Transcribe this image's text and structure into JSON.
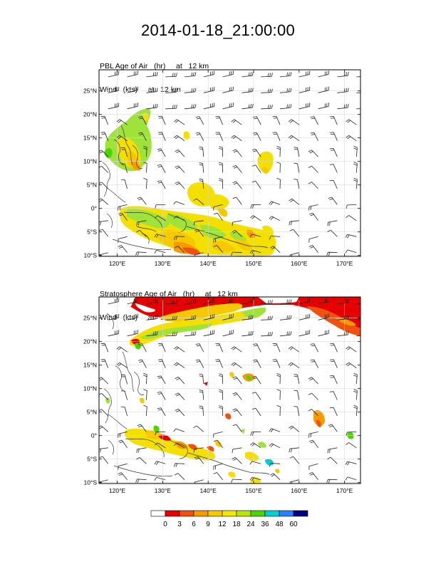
{
  "title": "2014-01-18_21:00:00",
  "panels": [
    {
      "title_line1": "PBL Age of Air   (hr)     at   12 km",
      "title_line2": "Wind   (kts)     at   12 km",
      "lon_ticks": [
        "120°E",
        "130°E",
        "140°E",
        "150°E",
        "160°E",
        "170°E"
      ],
      "lat_ticks": [
        "25°N",
        "20°N",
        "15°N",
        "10°N",
        "5°N",
        "0°",
        "5°S",
        "10°S"
      ]
    },
    {
      "title_line1": "Stratosphere Age of Air   (hr)     at   12 km",
      "title_line2": "Wind   (kts)     at   12 km",
      "lon_ticks": [
        "120°E",
        "130°E",
        "140°E",
        "150°E",
        "160°E",
        "170°E"
      ],
      "lat_ticks": [
        "25°N",
        "20°N",
        "15°N",
        "10°N",
        "5°N",
        "0°",
        "5°S",
        "10°S"
      ]
    }
  ],
  "colorbar": {
    "labels": [
      "0",
      "3",
      "6",
      "9",
      "12",
      "18",
      "24",
      "36",
      "48",
      "60"
    ],
    "colors": [
      "#ffffff",
      "#e60000",
      "#f05010",
      "#f59a00",
      "#f5c800",
      "#f5e600",
      "#b8e600",
      "#4cd400",
      "#00cfcf",
      "#2a7fff",
      "#000080"
    ]
  },
  "map_extent": {
    "lon": [
      116,
      173.5
    ],
    "lat": [
      -10.2,
      29.5
    ]
  }
}
